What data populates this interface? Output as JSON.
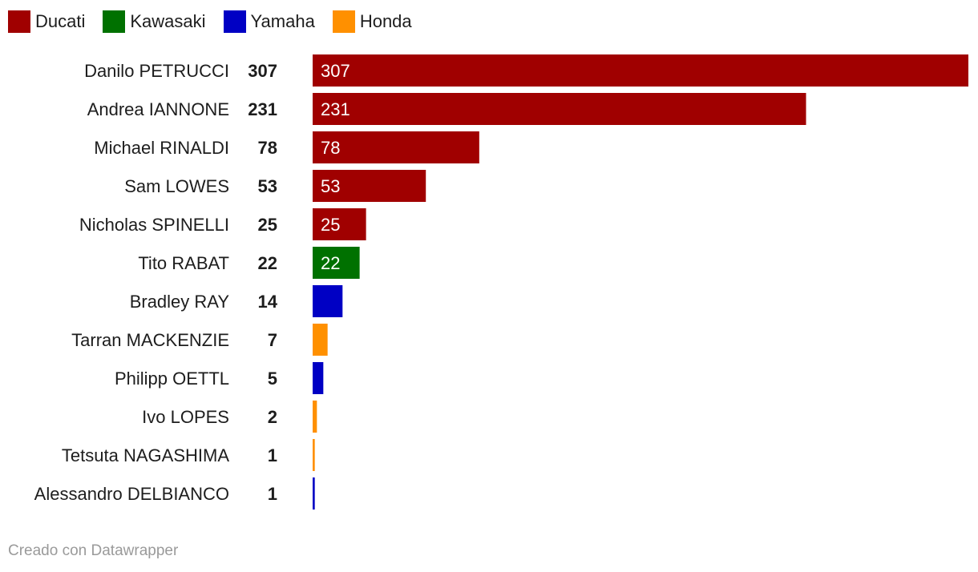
{
  "legend": [
    {
      "label": "Ducati",
      "color": "#a00000"
    },
    {
      "label": "Kawasaki",
      "color": "#007100"
    },
    {
      "label": "Yamaha",
      "color": "#0000c4"
    },
    {
      "label": "Honda",
      "color": "#ff9000"
    }
  ],
  "footer": "Creado con Datawrapper",
  "chart_data": {
    "type": "bar",
    "orientation": "horizontal",
    "xlim": [
      0,
      307
    ],
    "grid": false,
    "legend_position": "top-left",
    "categories": [
      "Danilo PETRUCCI",
      "Andrea IANNONE",
      "Michael RINALDI",
      "Sam LOWES",
      "Nicholas SPINELLI",
      "Tito RABAT",
      "Bradley RAY",
      "Tarran MACKENZIE",
      "Philipp OETTL",
      "Ivo LOPES",
      "Tetsuta NAGASHIMA",
      "Alessandro DELBIANCO"
    ],
    "values": [
      307,
      231,
      78,
      53,
      25,
      22,
      14,
      7,
      5,
      2,
      1,
      1
    ],
    "manufacturer": [
      "Ducati",
      "Ducati",
      "Ducati",
      "Ducati",
      "Ducati",
      "Kawasaki",
      "Yamaha",
      "Honda",
      "Yamaha",
      "Honda",
      "Honda",
      "Yamaha"
    ],
    "value_labels_inside_bar": [
      true,
      true,
      true,
      true,
      true,
      true,
      false,
      false,
      false,
      false,
      false,
      false
    ]
  }
}
